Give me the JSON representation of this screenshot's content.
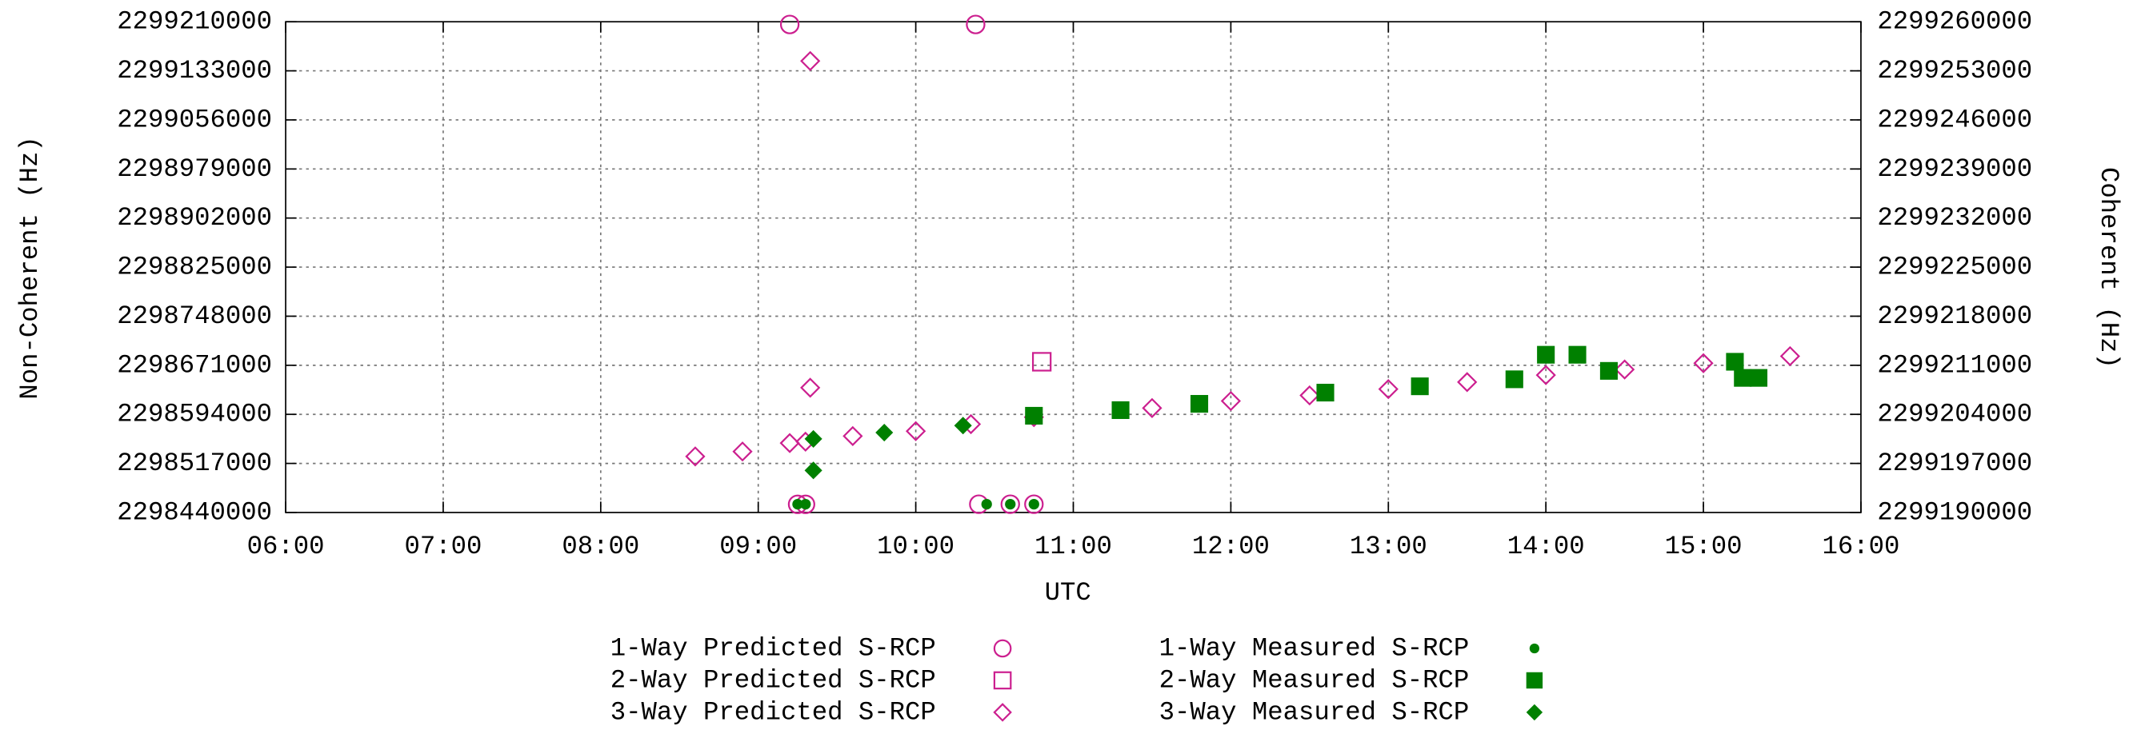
{
  "chart_data": {
    "type": "scatter",
    "x_label": "UTC",
    "y_label": "Non-Coherent (Hz)",
    "y2_label": "Coherent (Hz)",
    "xlim": [
      6,
      16
    ],
    "xticks": [
      {
        "value": 6,
        "label": "06:00"
      },
      {
        "value": 7,
        "label": "07:00"
      },
      {
        "value": 8,
        "label": "08:00"
      },
      {
        "value": 9,
        "label": "09:00"
      },
      {
        "value": 10,
        "label": "10:00"
      },
      {
        "value": 11,
        "label": "11:00"
      },
      {
        "value": 12,
        "label": "12:00"
      },
      {
        "value": 13,
        "label": "13:00"
      },
      {
        "value": 14,
        "label": "14:00"
      },
      {
        "value": 15,
        "label": "15:00"
      },
      {
        "value": 16,
        "label": "16:00"
      }
    ],
    "ylim": [
      2298440000,
      2299210000
    ],
    "yticks": [
      2298440000,
      2298517000,
      2298594000,
      2298671000,
      2298748000,
      2298825000,
      2298902000,
      2298979000,
      2299056000,
      2299133000,
      2299210000
    ],
    "y2lim": [
      2299190000,
      2299260000
    ],
    "y2ticks": [
      2299190000,
      2299197000,
      2299204000,
      2299211000,
      2299218000,
      2299225000,
      2299232000,
      2299239000,
      2299246000,
      2299253000,
      2299260000
    ],
    "grid": true,
    "legend": "bottom",
    "series": [
      {
        "name": "1-Way Predicted S-RCP",
        "color": "#cc1f8f",
        "marker": "circle",
        "filled": false,
        "x": [
          9.2,
          10.38,
          9.25,
          9.3,
          10.4,
          10.6,
          10.75
        ],
        "values": [
          2299205700,
          2299205700,
          2298452800,
          2298452800,
          2298453000,
          2298453000,
          2298453000
        ]
      },
      {
        "name": "2-Way Predicted S-RCP",
        "color": "#cc1f8f",
        "marker": "square",
        "filled": false,
        "axis": "y2",
        "x": [
          10.8
        ],
        "values": [
          2299211500
        ]
      },
      {
        "name": "3-Way Predicted S-RCP",
        "color": "#cc1f8f",
        "marker": "diamond",
        "filled": false,
        "axis": "y2",
        "x": [
          8.6,
          8.9,
          9.2,
          9.3,
          9.6,
          10.0,
          10.35,
          10.75,
          11.5,
          12.0,
          12.5,
          13.0,
          13.5,
          14.0,
          14.5,
          15.0,
          15.55,
          9.33,
          9.33
        ],
        "values": [
          2299198000,
          2299198700,
          2299199900,
          2299200100,
          2299200900,
          2299201600,
          2299202600,
          2299203600,
          2299204900,
          2299205900,
          2299206700,
          2299207600,
          2299208600,
          2299209600,
          2299210400,
          2299211300,
          2299212300,
          2299254400,
          2299207800
        ]
      },
      {
        "name": "1-Way Measured S-RCP",
        "color": "#008000",
        "marker": "octagon",
        "filled": true,
        "x": [
          9.25,
          9.3,
          10.45,
          10.6,
          10.75
        ],
        "values": [
          2298453000,
          2298453000,
          2298453000,
          2298453000,
          2298453000
        ]
      },
      {
        "name": "2-Way Measured S-RCP",
        "color": "#008000",
        "marker": "square",
        "filled": true,
        "axis": "y2",
        "x": [
          10.75,
          11.3,
          11.8,
          12.6,
          13.2,
          13.8,
          14.4,
          15.2,
          14.0,
          14.2,
          15.25,
          15.35
        ],
        "values": [
          2299203800,
          2299204600,
          2299205500,
          2299207100,
          2299208000,
          2299209000,
          2299210200,
          2299211500,
          2299212500,
          2299212500,
          2299209200,
          2299209200
        ]
      },
      {
        "name": "3-Way Measured S-RCP",
        "color": "#008000",
        "marker": "diamond",
        "filled": true,
        "axis": "y2",
        "x": [
          9.35,
          9.8,
          10.3,
          9.35
        ],
        "values": [
          2299200500,
          2299201400,
          2299202400,
          2299196000
        ]
      }
    ]
  }
}
